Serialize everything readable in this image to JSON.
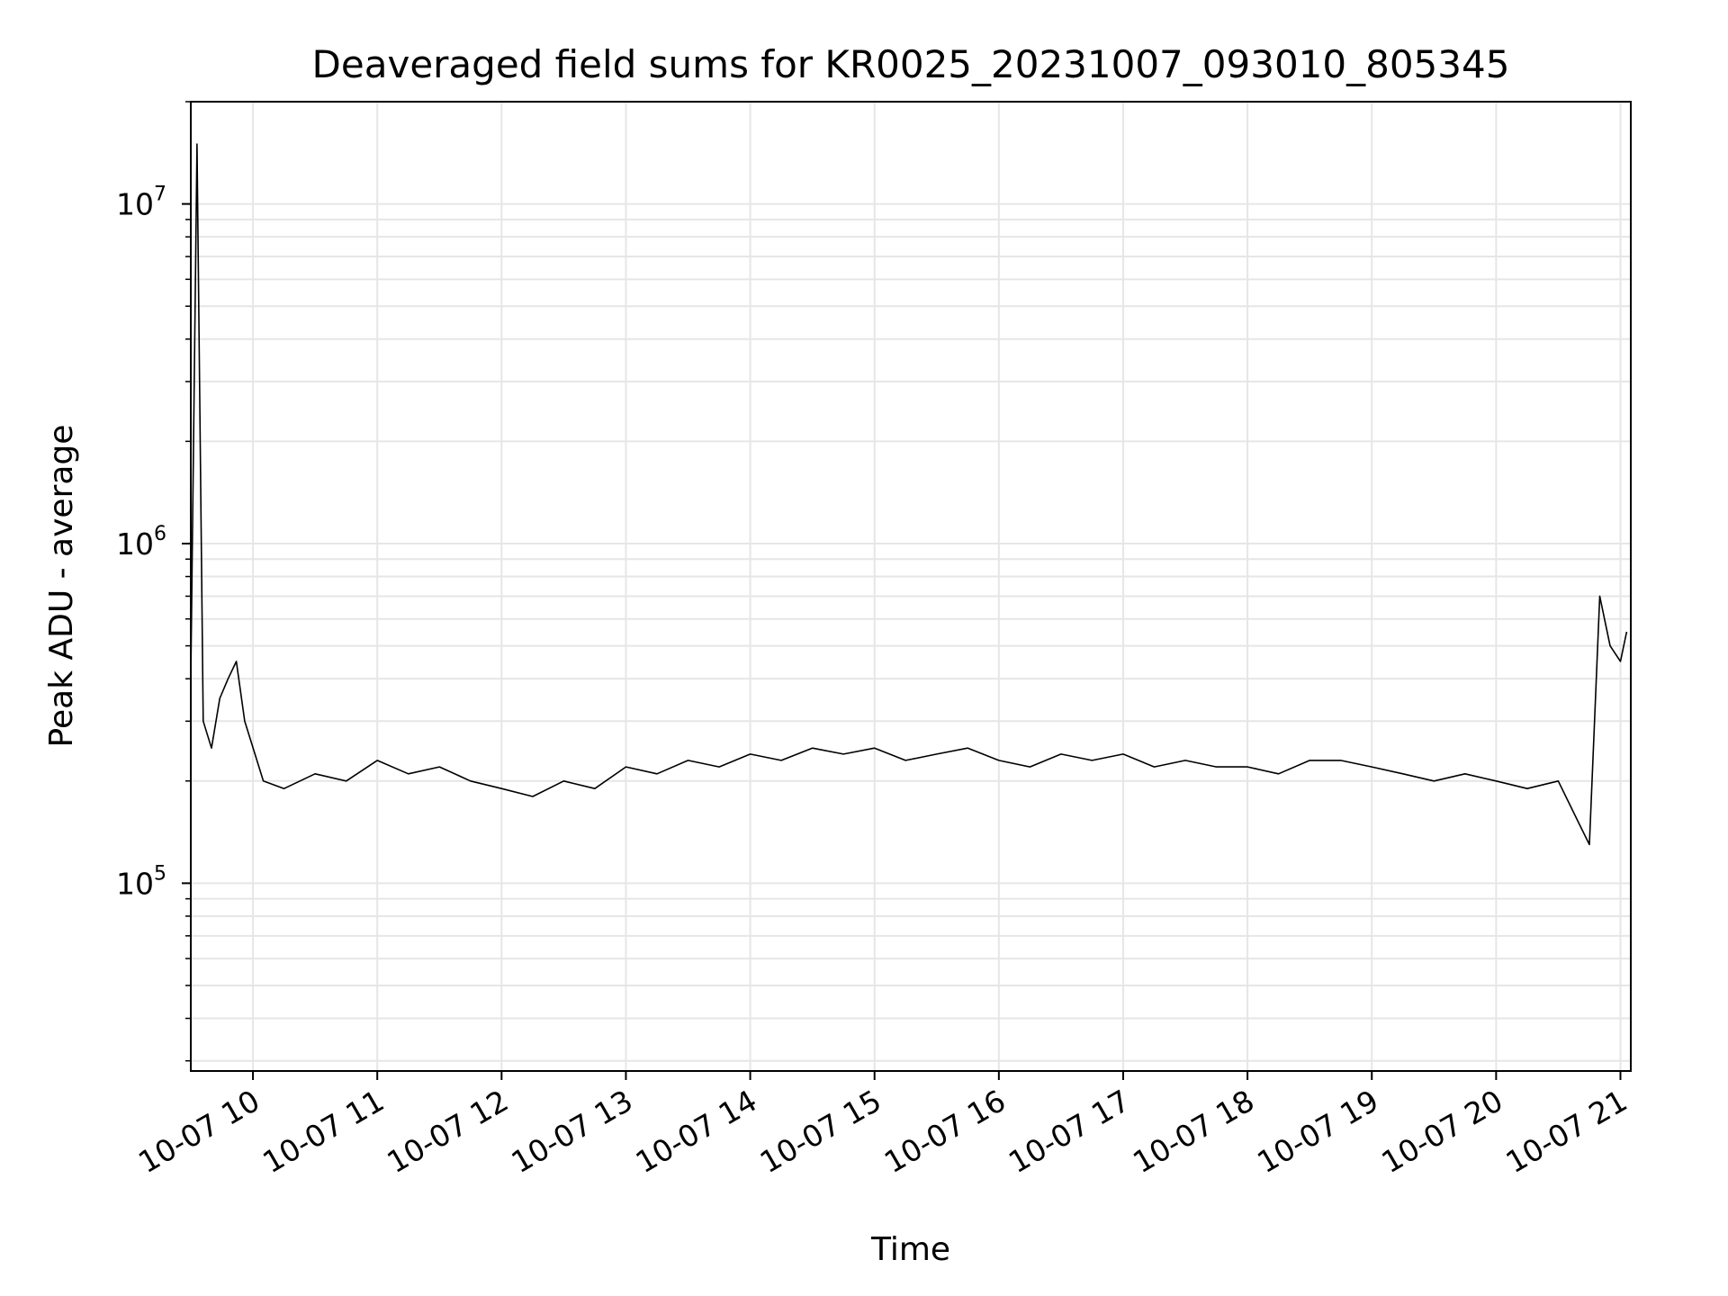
{
  "chart_data": {
    "type": "line",
    "title": "Deaveraged field sums for KR0025_20231007_093010_805345",
    "xlabel": "Time",
    "ylabel": "Peak ADU - average",
    "y_scale": "log",
    "ylim": [
      28000,
      20000000
    ],
    "xlim": [
      "2023-10-07T09:30",
      "2023-10-07T21:05"
    ],
    "grid": true,
    "line_color": "#000000",
    "x_ticks": [
      {
        "label": "10-07 10",
        "x": "2023-10-07T10:00"
      },
      {
        "label": "10-07 11",
        "x": "2023-10-07T11:00"
      },
      {
        "label": "10-07 12",
        "x": "2023-10-07T12:00"
      },
      {
        "label": "10-07 13",
        "x": "2023-10-07T13:00"
      },
      {
        "label": "10-07 14",
        "x": "2023-10-07T14:00"
      },
      {
        "label": "10-07 15",
        "x": "2023-10-07T15:00"
      },
      {
        "label": "10-07 16",
        "x": "2023-10-07T16:00"
      },
      {
        "label": "10-07 17",
        "x": "2023-10-07T17:00"
      },
      {
        "label": "10-07 18",
        "x": "2023-10-07T18:00"
      },
      {
        "label": "10-07 19",
        "x": "2023-10-07T19:00"
      },
      {
        "label": "10-07 20",
        "x": "2023-10-07T20:00"
      },
      {
        "label": "10-07 21",
        "x": "2023-10-07T21:00"
      }
    ],
    "y_ticks": [
      {
        "base": "10",
        "exp": "5",
        "value": 100000
      },
      {
        "base": "10",
        "exp": "6",
        "value": 1000000
      },
      {
        "base": "10",
        "exp": "7",
        "value": 10000000
      }
    ],
    "series": [
      {
        "x": [
          "2023-10-07T09:30",
          "2023-10-07T09:33",
          "2023-10-07T09:36",
          "2023-10-07T09:40",
          "2023-10-07T09:44",
          "2023-10-07T09:48",
          "2023-10-07T09:52",
          "2023-10-07T09:56",
          "2023-10-07T10:05",
          "2023-10-07T10:15",
          "2023-10-07T10:30",
          "2023-10-07T10:45",
          "2023-10-07T11:00",
          "2023-10-07T11:15",
          "2023-10-07T11:30",
          "2023-10-07T11:45",
          "2023-10-07T12:00",
          "2023-10-07T12:15",
          "2023-10-07T12:30",
          "2023-10-07T12:45",
          "2023-10-07T13:00",
          "2023-10-07T13:15",
          "2023-10-07T13:30",
          "2023-10-07T13:45",
          "2023-10-07T14:00",
          "2023-10-07T14:15",
          "2023-10-07T14:30",
          "2023-10-07T14:45",
          "2023-10-07T15:00",
          "2023-10-07T15:15",
          "2023-10-07T15:30",
          "2023-10-07T15:45",
          "2023-10-07T16:00",
          "2023-10-07T16:15",
          "2023-10-07T16:30",
          "2023-10-07T16:45",
          "2023-10-07T17:00",
          "2023-10-07T17:15",
          "2023-10-07T17:30",
          "2023-10-07T17:45",
          "2023-10-07T18:00",
          "2023-10-07T18:15",
          "2023-10-07T18:30",
          "2023-10-07T18:45",
          "2023-10-07T19:00",
          "2023-10-07T19:15",
          "2023-10-07T19:30",
          "2023-10-07T19:45",
          "2023-10-07T20:00",
          "2023-10-07T20:15",
          "2023-10-07T20:30",
          "2023-10-07T20:40",
          "2023-10-07T20:45",
          "2023-10-07T20:50",
          "2023-10-07T20:55",
          "2023-10-07T21:00",
          "2023-10-07T21:03"
        ],
        "y": [
          400000,
          15000000,
          300000,
          250000,
          350000,
          400000,
          450000,
          300000,
          200000,
          190000,
          210000,
          200000,
          230000,
          210000,
          220000,
          200000,
          190000,
          180000,
          200000,
          190000,
          220000,
          210000,
          230000,
          220000,
          240000,
          230000,
          250000,
          240000,
          250000,
          230000,
          240000,
          250000,
          230000,
          220000,
          240000,
          230000,
          240000,
          220000,
          230000,
          220000,
          220000,
          210000,
          230000,
          230000,
          220000,
          210000,
          200000,
          210000,
          200000,
          190000,
          200000,
          150000,
          130000,
          700000,
          500000,
          450000,
          550000
        ]
      }
    ]
  }
}
